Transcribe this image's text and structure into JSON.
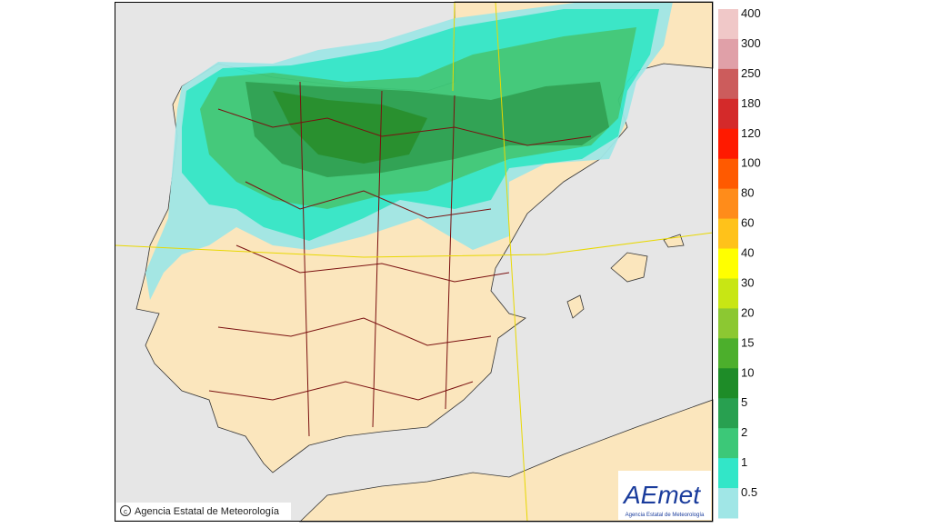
{
  "legend": {
    "items": [
      {
        "label": "400",
        "color": "#f0c8c8"
      },
      {
        "label": "300",
        "color": "#e0a0a8"
      },
      {
        "label": "250",
        "color": "#cc5c5c"
      },
      {
        "label": "180",
        "color": "#d42a2a"
      },
      {
        "label": "120",
        "color": "#ff1a00"
      },
      {
        "label": "100",
        "color": "#ff5a00"
      },
      {
        "label": "80",
        "color": "#ff8c1a"
      },
      {
        "label": "60",
        "color": "#ffc21a"
      },
      {
        "label": "40",
        "color": "#ffff00"
      },
      {
        "label": "30",
        "color": "#c8e614"
      },
      {
        "label": "20",
        "color": "#8cc832"
      },
      {
        "label": "15",
        "color": "#4caf2c"
      },
      {
        "label": "10",
        "color": "#1e8c28"
      },
      {
        "label": "5",
        "color": "#28a050"
      },
      {
        "label": "2",
        "color": "#3cc878"
      },
      {
        "label": "1",
        "color": "#32e6c8"
      },
      {
        "label": "0.5",
        "color": "#a0e6e6"
      }
    ]
  },
  "footer": {
    "copyright": "Agencia Estatal de Meteorología"
  },
  "logo": {
    "name": "AEmet",
    "subtitle": "Agencia Estatal de Meteorología"
  }
}
